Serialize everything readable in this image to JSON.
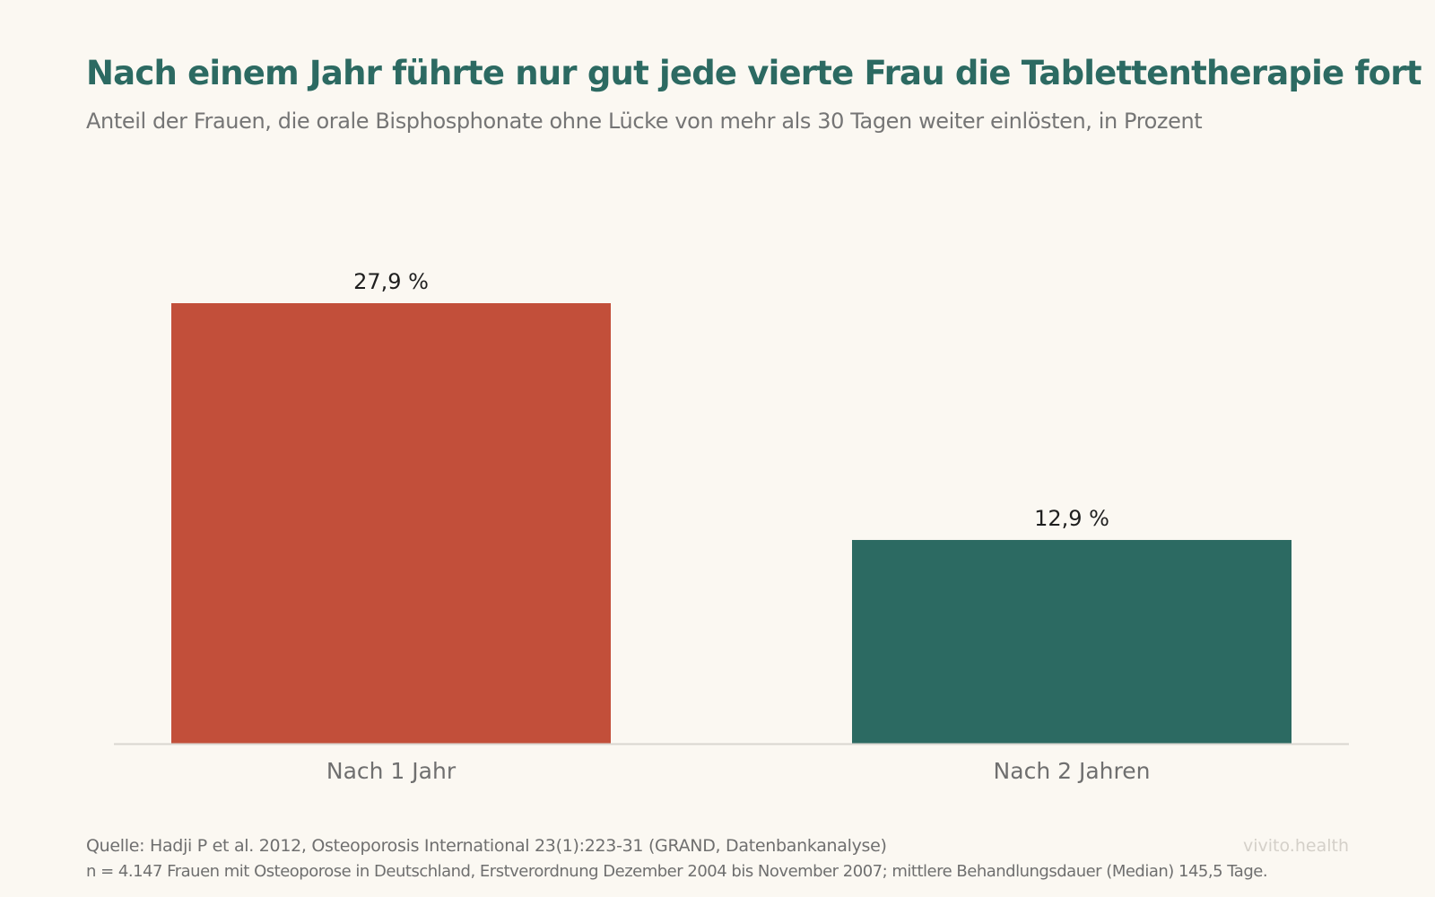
{
  "header": {
    "title": "Nach einem Jahr führte nur gut jede vierte Frau die Tablettentherapie fort",
    "subtitle": "Anteil der Frauen, die orale Bisphosphonate ohne Lücke von mehr als 30 Tagen weiter einlösten, in Prozent"
  },
  "chart_data": {
    "type": "bar",
    "title": "Nach einem Jahr führte nur gut jede vierte Frau die Tablettentherapie fort",
    "subtitle": "Anteil der Frauen, die orale Bisphosphonate ohne Lücke von mehr als 30 Tagen weiter einlösten, in Prozent",
    "categories": [
      "Nach 1 Jahr",
      "Nach 2 Jahren"
    ],
    "values": [
      27.9,
      12.9
    ],
    "value_labels": [
      "27,9 %",
      "12,9 %"
    ],
    "colors": [
      "#c24f3a",
      "#2c6a62"
    ],
    "xlabel": "",
    "ylabel": "",
    "ylim": [
      0,
      30
    ],
    "grid": false,
    "legend": "none"
  },
  "footer": {
    "source": "Quelle: Hadji P et al. 2012, Osteoporosis International 23(1):223-31 (GRAND, Datenbankanalyse)",
    "note": "n = 4.147 Frauen mit Osteoporose in Deutschland, Erstverordnung Dezember 2004 bis November 2007; mittlere Behandlungsdauer (Median) 145,5 Tage.",
    "brand": "vivito.health"
  },
  "colors": {
    "background": "#fbf8f2",
    "title": "#2c6a62",
    "text_muted": "#757575",
    "axis": "#d9d6d0"
  }
}
